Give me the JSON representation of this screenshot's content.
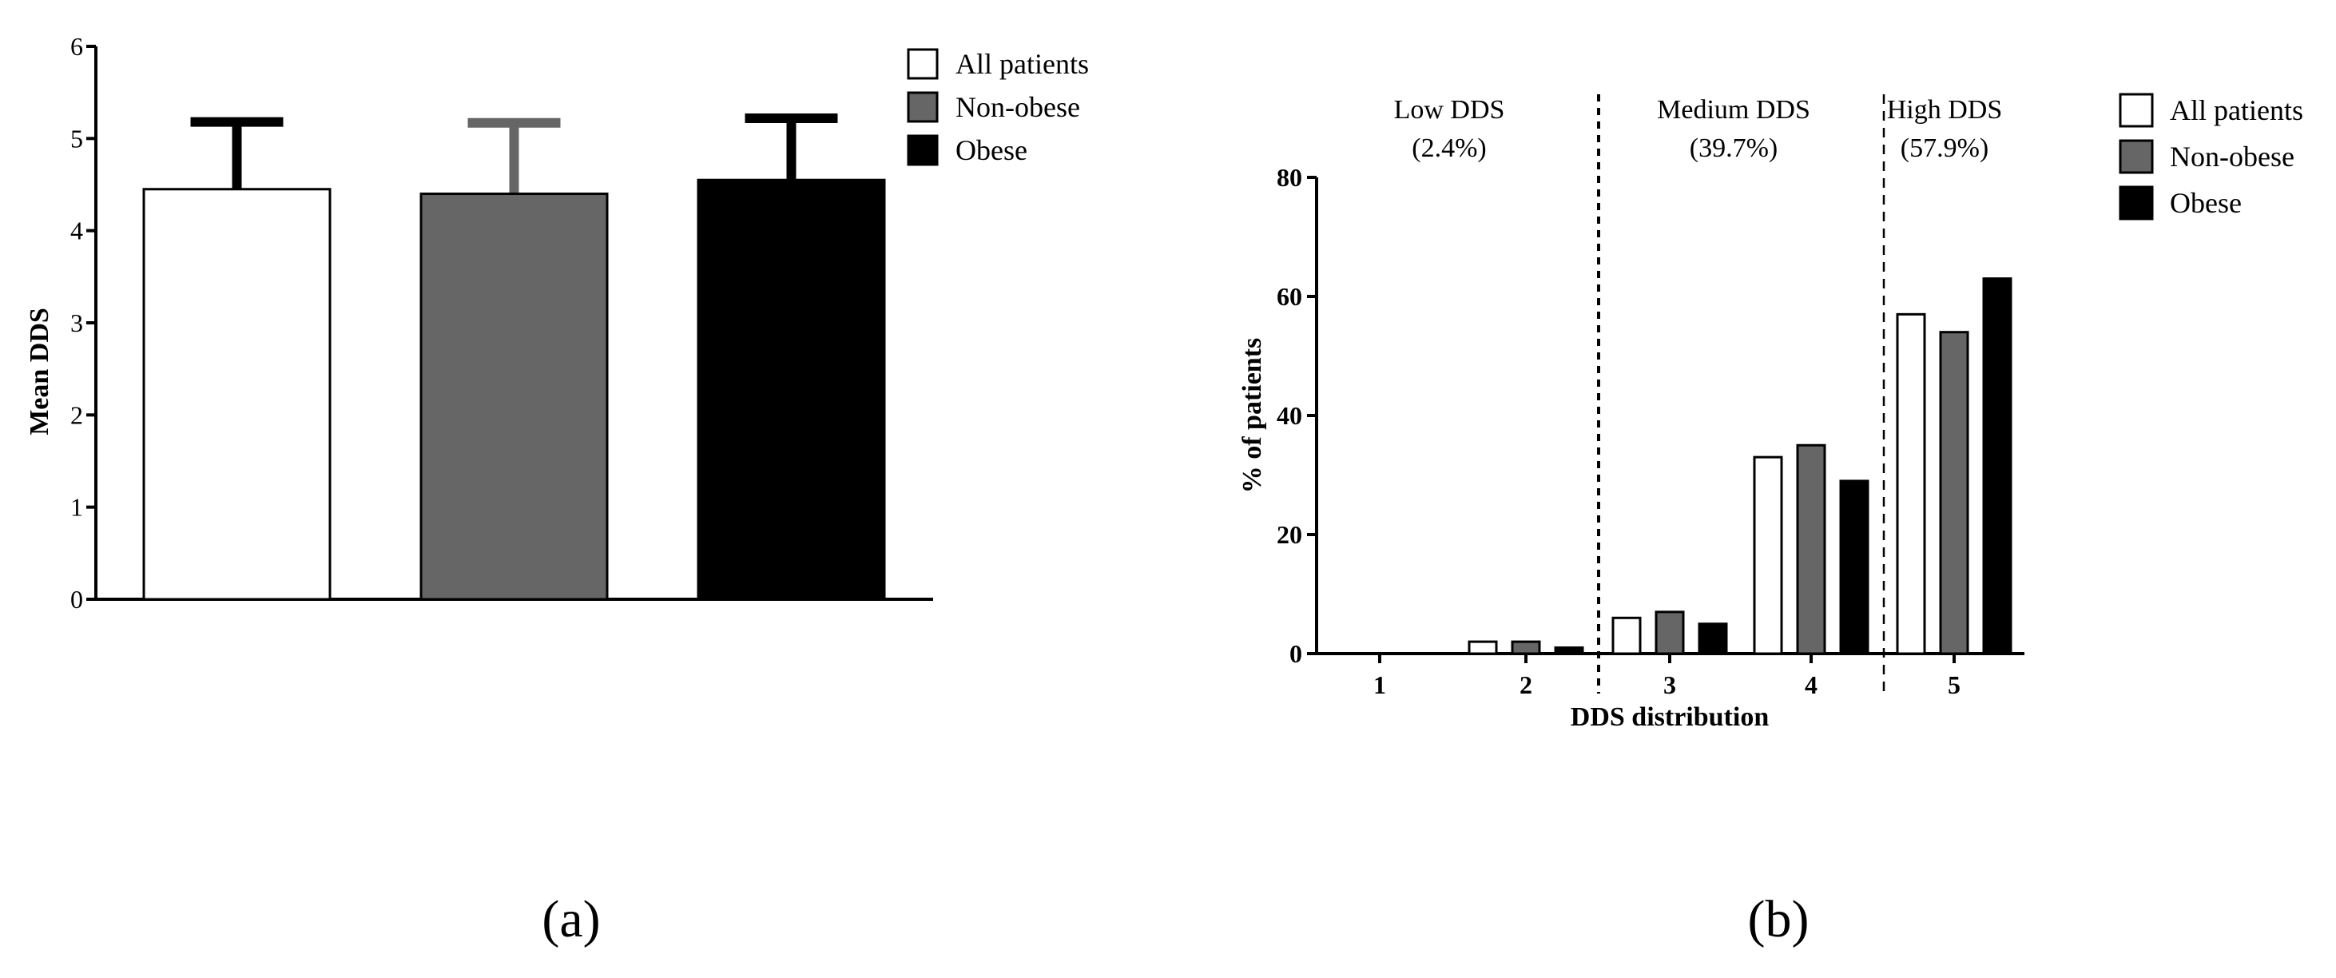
{
  "colors": {
    "all_patients": "#ffffff",
    "non_obese": "#666666",
    "obese": "#000000",
    "stroke": "#000000"
  },
  "legend": {
    "a": [
      "All patients",
      "Non-obese",
      "Obese"
    ],
    "b": [
      "All patients",
      "Non-obese",
      "Obese"
    ]
  },
  "captions": {
    "a": "(a)",
    "b": "(b)"
  },
  "chart_data": [
    {
      "type": "bar",
      "panel": "a",
      "categories": [
        "All patients",
        "Non-obese",
        "Obese"
      ],
      "values": [
        4.45,
        4.4,
        4.55
      ],
      "error_upper": [
        5.18,
        5.17,
        5.22
      ],
      "ylabel": "Mean DDS",
      "xlabel": "",
      "ylim": [
        0,
        6
      ],
      "yticks": [
        "0",
        "1",
        "2",
        "3",
        "4",
        "5",
        "6"
      ],
      "legend_position": "top-right",
      "grid": false
    },
    {
      "type": "bar",
      "panel": "b",
      "categories": [
        "1",
        "2",
        "3",
        "4",
        "5"
      ],
      "series": [
        {
          "name": "All patients",
          "values": [
            0,
            2,
            6,
            33,
            57
          ]
        },
        {
          "name": "Non-obese",
          "values": [
            0,
            2,
            7,
            35,
            54
          ]
        },
        {
          "name": "Obese",
          "values": [
            0,
            1,
            5,
            29,
            63
          ]
        }
      ],
      "xlabel": "DDS distribution",
      "ylabel": "% of patients",
      "ylim": [
        0,
        80
      ],
      "yticks": [
        "0",
        "20",
        "40",
        "60",
        "80"
      ],
      "regions": [
        {
          "name": "Low DDS",
          "pct": "(2.4%)"
        },
        {
          "name": "Medium DDS",
          "pct": "(39.7%)"
        },
        {
          "name": "High DDS",
          "pct": "(57.9%)"
        }
      ],
      "legend_position": "top-right",
      "grid": false
    }
  ]
}
